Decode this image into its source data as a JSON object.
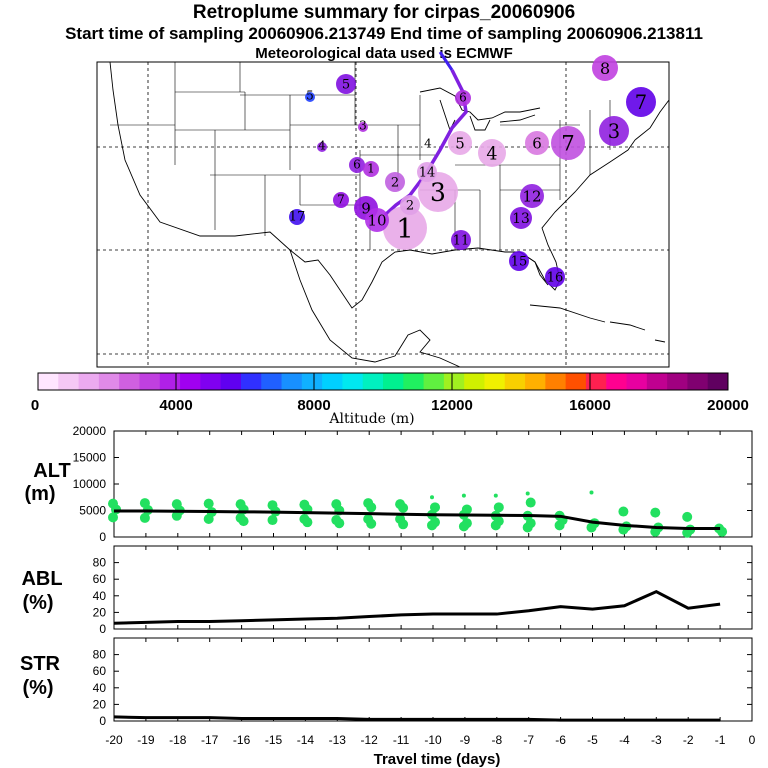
{
  "header": {
    "title": "Retroplume summary for cirpas_20060906",
    "sampling_line": "Start time of sampling 20060906.213749     End time of sampling 20060906.213811",
    "met_line": "Meteorological data used is ECMWF"
  },
  "map": {
    "description_markers": [
      "1",
      "2",
      "3",
      "4",
      "5",
      "6",
      "7",
      "8",
      "9",
      "10",
      "11",
      "12",
      "13",
      "14",
      "15",
      "16",
      "17"
    ]
  },
  "colorbar": {
    "ticks": [
      "0",
      "4000",
      "8000",
      "12000",
      "16000",
      "20000"
    ],
    "label": "Altitude (m)",
    "colors": [
      "#ffe6ff",
      "#f5c8f5",
      "#ecaaf0",
      "#e08ae8",
      "#d060e0",
      "#c040e0",
      "#b020e8",
      "#a000f0",
      "#8000f0",
      "#6000f0",
      "#3030ff",
      "#2060ff",
      "#1890ff",
      "#10b0ff",
      "#00d0ff",
      "#00e8f0",
      "#00f0c0",
      "#00f090",
      "#20f060",
      "#60f040",
      "#a0f020",
      "#d0f000",
      "#f0f000",
      "#f8d000",
      "#ffb000",
      "#ff8000",
      "#ff5000",
      "#ff2050",
      "#ff0090",
      "#e800a0",
      "#c00090",
      "#a00080",
      "#800070",
      "#600060"
    ]
  },
  "chart_data": [
    {
      "type": "line",
      "name": "ALT",
      "ylabel": "ALT (m)",
      "xlabel": "Travel time (days)",
      "x": [
        -20,
        -19,
        -18,
        -17,
        -16,
        -15,
        -14,
        -13,
        -12,
        -11,
        -10,
        -9,
        -8,
        -7,
        -6,
        -5,
        -4,
        -3,
        -2,
        -1
      ],
      "values": [
        4900,
        4900,
        4850,
        4800,
        4750,
        4700,
        4600,
        4500,
        4400,
        4300,
        4200,
        4150,
        4100,
        4050,
        3900,
        2800,
        2200,
        1800,
        1600,
        1600
      ],
      "ylim": [
        0,
        20000
      ],
      "yticks": [
        0,
        5000,
        10000,
        15000,
        20000
      ],
      "scatter": [
        {
          "x": -20,
          "y": [
            6300,
            5200,
            3700
          ]
        },
        {
          "x": -19,
          "y": [
            6400,
            5100,
            3600
          ]
        },
        {
          "x": -18,
          "y": [
            6200,
            5000,
            4000
          ]
        },
        {
          "x": -17,
          "y": [
            6300,
            4700,
            3400
          ]
        },
        {
          "x": -16,
          "y": [
            6200,
            5200,
            3600,
            3000
          ]
        },
        {
          "x": -15,
          "y": [
            6000,
            4800,
            3200
          ]
        },
        {
          "x": -14,
          "y": [
            6100,
            5200,
            3400,
            2800
          ]
        },
        {
          "x": -13,
          "y": [
            6200,
            5000,
            3200,
            2600
          ]
        },
        {
          "x": -12,
          "y": [
            6400,
            5600,
            3400,
            2500
          ]
        },
        {
          "x": -11,
          "y": [
            6200,
            5500,
            3400,
            2400
          ]
        },
        {
          "x": -10,
          "y": [
            7500,
            5600,
            4200,
            2800,
            2200
          ]
        },
        {
          "x": -9,
          "y": [
            7800,
            5200,
            4200,
            2600,
            2000
          ]
        },
        {
          "x": -8,
          "y": [
            7800,
            5600,
            4000,
            3000,
            2200
          ]
        },
        {
          "x": -7,
          "y": [
            8200,
            6500,
            4000,
            2600,
            1800
          ]
        },
        {
          "x": -6,
          "y": [
            4000,
            3200,
            2200
          ]
        },
        {
          "x": -5,
          "y": [
            8400,
            2600,
            1800
          ]
        },
        {
          "x": -4,
          "y": [
            4800,
            2000,
            1400
          ]
        },
        {
          "x": -3,
          "y": [
            4600,
            1800,
            1000
          ]
        },
        {
          "x": -2,
          "y": [
            3800,
            1400,
            800
          ]
        },
        {
          "x": -1,
          "y": [
            1600,
            1000
          ]
        }
      ]
    },
    {
      "type": "line",
      "name": "ABL",
      "ylabel": "ABL (%)",
      "x": [
        -20,
        -19,
        -18,
        -17,
        -16,
        -15,
        -14,
        -13,
        -12,
        -11,
        -10,
        -9,
        -8,
        -7,
        -6,
        -5,
        -4,
        -3,
        -2,
        -1
      ],
      "values": [
        7,
        8,
        9,
        9,
        10,
        11,
        12,
        13,
        15,
        17,
        18,
        18,
        18,
        22,
        27,
        24,
        28,
        45,
        25,
        30
      ],
      "ylim": [
        0,
        100
      ],
      "yticks": [
        0,
        20,
        40,
        60,
        80
      ]
    },
    {
      "type": "line",
      "name": "STR",
      "ylabel": "STR (%)",
      "x": [
        -20,
        -19,
        -18,
        -17,
        -16,
        -15,
        -14,
        -13,
        -12,
        -11,
        -10,
        -9,
        -8,
        -7,
        -6,
        -5,
        -4,
        -3,
        -2,
        -1
      ],
      "values": [
        5,
        4,
        4,
        4,
        3,
        3,
        3,
        3,
        2,
        2,
        2,
        2,
        2,
        2,
        1,
        1,
        1,
        1,
        1,
        1
      ],
      "ylim": [
        0,
        100
      ],
      "yticks": [
        0,
        20,
        40,
        60,
        80
      ]
    }
  ],
  "x_ticks": [
    "-20",
    "-19",
    "-18",
    "-17",
    "-16",
    "-15",
    "-14",
    "-13",
    "-12",
    "-11",
    "-10",
    "-9",
    "-8",
    "-7",
    "-6",
    "-5",
    "-4",
    "-3",
    "-2",
    "-1",
    "0"
  ],
  "panel_labels": {
    "alt_1": "ALT",
    "alt_2": "(m)",
    "abl_1": "ABL",
    "abl_2": "(%)",
    "str_1": "STR",
    "str_2": "(%)"
  }
}
